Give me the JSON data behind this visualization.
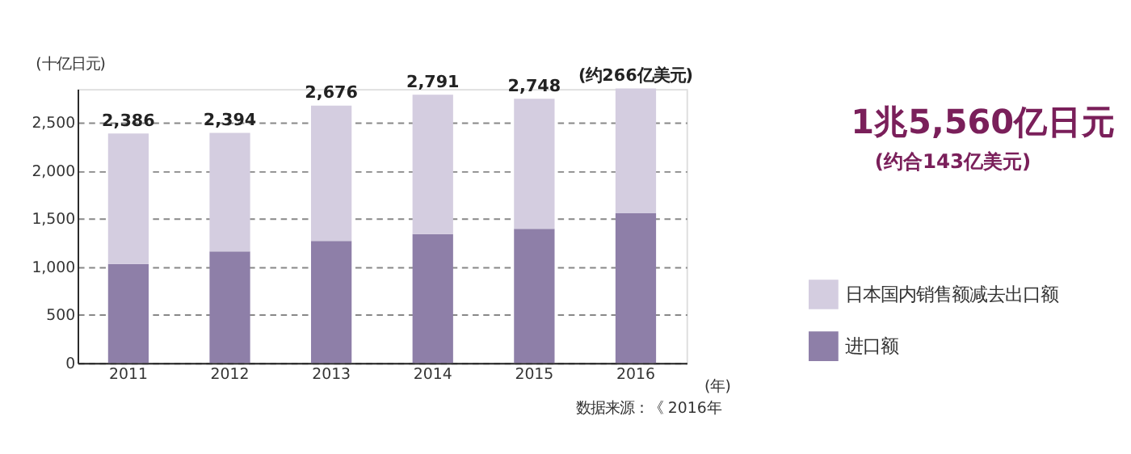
{
  "chart_data": {
    "type": "bar",
    "stacked": true,
    "categories": [
      "2011",
      "2012",
      "2013",
      "2014",
      "2015",
      "2016"
    ],
    "series": [
      {
        "name": "进口额",
        "color": "#8e7fa8",
        "values": [
          1030,
          1160,
          1270,
          1340,
          1395,
          1556
        ]
      },
      {
        "name": "日本国内销售额减去出口额",
        "color": "#d4cde0",
        "values": [
          1356,
          1234,
          1406,
          1451,
          1353,
          1300
        ]
      }
    ],
    "totals": [
      "2,386",
      "2,394",
      "2,676",
      "2,791",
      "2,748",
      "(约266亿美元)"
    ],
    "ylabel": "(十亿日元)",
    "xlabel": "(年)",
    "ylim": [
      0,
      2850
    ],
    "yticks": [
      0,
      500,
      {
        "value": 1000,
        "label": "1,000"
      },
      {
        "value": 1500,
        "label": "1,500"
      },
      {
        "value": 2000,
        "label": "2,000"
      },
      {
        "value": 2500,
        "label": "2,500"
      }
    ],
    "grid": "y",
    "legend": "bottom right",
    "annotations": [
      "1兆5,560亿日元",
      "(约合143亿美元)",
      "数据来源：《 2016年"
    ]
  }
}
